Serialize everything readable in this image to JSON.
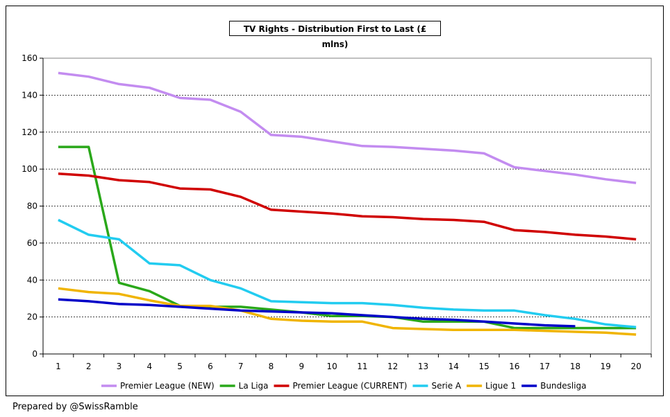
{
  "chart_data": {
    "type": "line",
    "title": "TV Rights - Distribution First to Last (£ mlns)",
    "xlabel": "",
    "ylabel": "",
    "ylim": [
      0,
      160
    ],
    "yticks": [
      0,
      20,
      40,
      60,
      80,
      100,
      120,
      140,
      160
    ],
    "x": [
      1,
      2,
      3,
      4,
      5,
      6,
      7,
      8,
      9,
      10,
      11,
      12,
      13,
      14,
      15,
      16,
      17,
      18,
      19,
      20
    ],
    "grid": "horizontal dashed",
    "legend_position": "bottom",
    "series": [
      {
        "name": "Premier League (NEW)",
        "color": "#c38cf0",
        "values": [
          152,
          150,
          146,
          144,
          138.5,
          137.5,
          131,
          118.5,
          117.5,
          115,
          112.5,
          112,
          111,
          110,
          108.5,
          101,
          99,
          97,
          94.5,
          92.5
        ]
      },
      {
        "name": "La Liga",
        "color": "#2aa81a",
        "values": [
          112,
          112,
          38.5,
          34,
          26,
          25.5,
          25.5,
          24,
          22.5,
          20.5,
          20.5,
          20,
          17.5,
          17.5,
          17.5,
          14,
          14,
          14,
          14,
          14
        ]
      },
      {
        "name": "Premier League (CURRENT)",
        "color": "#d00000",
        "values": [
          97.5,
          96.5,
          94,
          93,
          89.5,
          89,
          85,
          78,
          77,
          76,
          74.5,
          74,
          73,
          72.5,
          71.5,
          67,
          66,
          64.5,
          63.5,
          62
        ]
      },
      {
        "name": "Serie A",
        "color": "#22ccf0",
        "values": [
          72.5,
          64.5,
          62,
          49,
          48,
          40,
          35.5,
          28.5,
          28,
          27.5,
          27.5,
          26.5,
          25,
          24,
          23.5,
          23.5,
          21,
          19,
          16,
          14.5
        ]
      },
      {
        "name": "Ligue 1",
        "color": "#f0b400",
        "values": [
          35.5,
          33.5,
          32.5,
          29,
          26,
          26,
          23.5,
          19,
          18,
          17.5,
          17.5,
          14,
          13.5,
          13,
          13,
          13,
          12.5,
          12,
          11.5,
          10.5
        ]
      },
      {
        "name": "Bundesliga",
        "color": "#0000c8",
        "values": [
          29.5,
          28.5,
          27,
          26.5,
          25.5,
          24.5,
          23.5,
          23,
          22.5,
          22,
          21,
          20,
          19,
          18.5,
          17.5,
          16.5,
          15.5,
          15,
          null,
          null
        ]
      }
    ]
  },
  "footer": {
    "text": "Prepared by @SwissRamble"
  }
}
